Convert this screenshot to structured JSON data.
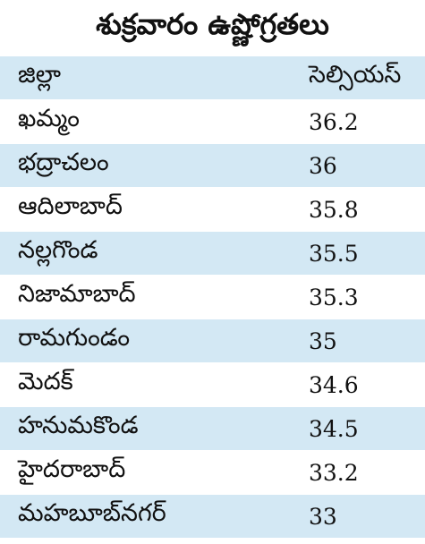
{
  "header": {
    "title": "శుక్రవారం ఉష్ణోగ్రతలు"
  },
  "table": {
    "columns": [
      "జిల్లా",
      "సెల్సియస్"
    ],
    "rows": [
      [
        "ఖమ్మం",
        "36.2"
      ],
      [
        "భద్రాచలం",
        "36"
      ],
      [
        "ఆదిలాబాద్",
        "35.8"
      ],
      [
        "నల్లగొండ",
        "35.5"
      ],
      [
        "నిజామాబాద్",
        "35.3"
      ],
      [
        "రామగుండం",
        "35"
      ],
      [
        "మెదక్",
        "34.6"
      ],
      [
        "హనుమకొండ",
        "34.5"
      ],
      [
        "హైదరాబాద్",
        "33.2"
      ],
      [
        "మహబూబ్‌నగర్",
        "33"
      ]
    ]
  }
}
